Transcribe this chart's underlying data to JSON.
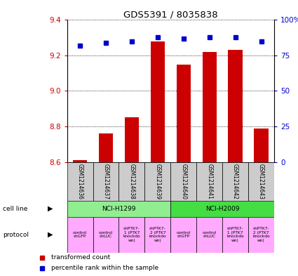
{
  "title": "GDS5391 / 8035838",
  "samples": [
    "GSM1214636",
    "GSM1214637",
    "GSM1214638",
    "GSM1214639",
    "GSM1214640",
    "GSM1214641",
    "GSM1214642",
    "GSM1214643"
  ],
  "transformed_counts": [
    8.61,
    8.76,
    8.85,
    9.28,
    9.15,
    9.22,
    9.23,
    8.79
  ],
  "percentile_ranks": [
    82,
    84,
    85,
    88,
    87,
    88,
    88,
    85
  ],
  "ylim_left": [
    8.6,
    9.4
  ],
  "ylim_right": [
    0,
    100
  ],
  "yticks_left": [
    8.6,
    8.8,
    9.0,
    9.2,
    9.4
  ],
  "yticks_right": [
    0,
    25,
    50,
    75,
    100
  ],
  "cell_line_groups": [
    {
      "label": "NCI-H1299",
      "start": 0,
      "end": 3,
      "color": "#90ee90"
    },
    {
      "label": "NCI-H2009",
      "start": 4,
      "end": 7,
      "color": "#44dd44"
    }
  ],
  "protocols": [
    {
      "label": "control\nshGFP",
      "color": "#ffaaff"
    },
    {
      "label": "control\nshLUC",
      "color": "#ffaaff"
    },
    {
      "label": "shPTK7-\n1 (PTK7\nknockdo\nwn)",
      "color": "#ffaaff"
    },
    {
      "label": "shPTK7-\n2 (PTK7\nknockdo\nwn)",
      "color": "#ffaaff"
    },
    {
      "label": "control\nshGFP",
      "color": "#ffaaff"
    },
    {
      "label": "control\nshLUC",
      "color": "#ffaaff"
    },
    {
      "label": "shPTK7-\n1 (PTK7\nknockdo\nwn)",
      "color": "#ffaaff"
    },
    {
      "label": "shPTK7-\n2 (PTK7\nknockdo\nwn)",
      "color": "#ffaaff"
    }
  ],
  "bar_color": "#cc0000",
  "dot_color": "#0000cc",
  "bar_bottom": 8.6,
  "sample_box_color": "#cccccc",
  "left_axis_color": "#cc0000",
  "right_axis_color": "#0000cc",
  "legend_red_label": "transformed count",
  "legend_blue_label": "percentile rank within the sample",
  "cell_line_label": "cell line",
  "protocol_label": "protocol"
}
